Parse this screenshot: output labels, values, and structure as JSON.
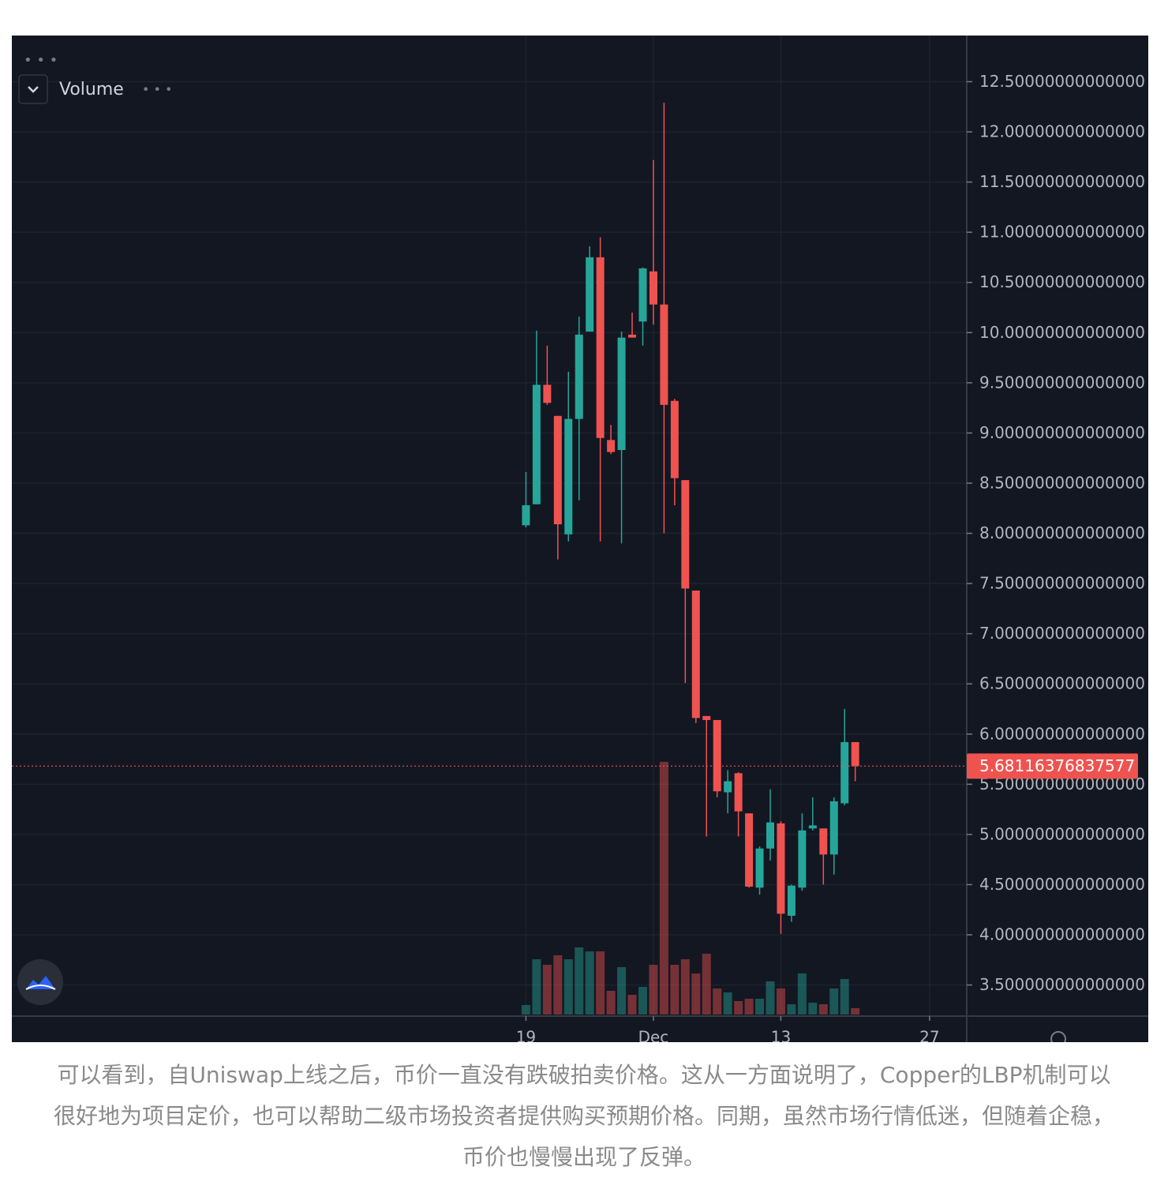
{
  "chart_data": {
    "type": "candlestick",
    "legend_label": "Volume",
    "x": [
      0,
      1,
      2,
      3,
      4,
      5,
      6,
      7,
      8,
      9,
      10,
      11,
      12,
      13,
      14,
      15,
      16,
      17,
      18,
      19,
      20,
      21,
      22,
      23,
      24,
      25,
      26,
      27,
      28,
      29,
      30,
      31
    ],
    "xlim": [
      -48.4,
      41.5
    ],
    "xticks": [
      {
        "value": 0,
        "label": "19"
      },
      {
        "value": 12,
        "label": "Dec"
      },
      {
        "value": 24,
        "label": "13"
      },
      {
        "value": 38,
        "label": "27"
      }
    ],
    "ylim": [
      3.19,
      12.96
    ],
    "yticks": [
      {
        "value": 12.5,
        "label": "12.50000000000000"
      },
      {
        "value": 12,
        "label": "12.00000000000000"
      },
      {
        "value": 11.5,
        "label": "11.50000000000000"
      },
      {
        "value": 11,
        "label": "11.00000000000000"
      },
      {
        "value": 10.5,
        "label": "10.50000000000000"
      },
      {
        "value": 10,
        "label": "10.00000000000000"
      },
      {
        "value": 9.5,
        "label": "9.500000000000000"
      },
      {
        "value": 9,
        "label": "9.000000000000000"
      },
      {
        "value": 8.5,
        "label": "8.500000000000000"
      },
      {
        "value": 8,
        "label": "8.000000000000000"
      },
      {
        "value": 7.5,
        "label": "7.500000000000000"
      },
      {
        "value": 7,
        "label": "7.000000000000000"
      },
      {
        "value": 6.5,
        "label": "6.500000000000000"
      },
      {
        "value": 6,
        "label": "6.000000000000000"
      },
      {
        "value": 5.5,
        "label": "5.500000000000000"
      },
      {
        "value": 5,
        "label": "5.000000000000000"
      },
      {
        "value": 4.5,
        "label": "4.500000000000000"
      },
      {
        "value": 4,
        "label": "4.000000000000000"
      },
      {
        "value": 3.5,
        "label": "3.500000000000000"
      }
    ],
    "open": [
      8.08,
      8.29,
      9.48,
      9.17,
      7.99,
      9.14,
      10.01,
      10.75,
      8.93,
      8.83,
      9.98,
      10.11,
      10.61,
      10.28,
      9.32,
      8.53,
      7.43,
      6.18,
      6.14,
      5.42,
      5.61,
      5.21,
      4.47,
      4.86,
      5.11,
      4.19,
      4.47,
      5.06,
      5.06,
      4.8,
      5.31,
      5.92
    ],
    "high": [
      8.61,
      10.02,
      9.87,
      9.17,
      9.61,
      10.16,
      10.86,
      10.95,
      9.08,
      10.01,
      10.2,
      10.65,
      11.72,
      12.29,
      9.34,
      8.53,
      7.43,
      6.18,
      6.14,
      5.64,
      5.62,
      5.21,
      4.88,
      5.45,
      5.13,
      4.5,
      5.21,
      5.37,
      5.06,
      5.37,
      6.25,
      5.92
    ],
    "low": [
      8.06,
      8.29,
      9.28,
      7.74,
      7.92,
      8.33,
      10.01,
      7.92,
      8.79,
      7.9,
      9.95,
      9.87,
      10.08,
      8.0,
      8.28,
      6.51,
      6.11,
      4.98,
      5.37,
      5.21,
      4.98,
      4.47,
      4.4,
      4.74,
      4.01,
      4.13,
      4.44,
      5.04,
      4.5,
      4.6,
      5.29,
      5.53
    ],
    "close": [
      8.28,
      9.48,
      9.3,
      8.09,
      9.14,
      9.98,
      10.75,
      8.95,
      8.81,
      9.95,
      9.95,
      10.64,
      10.28,
      9.28,
      8.55,
      7.45,
      6.16,
      6.14,
      5.43,
      5.53,
      5.23,
      4.48,
      4.86,
      5.12,
      4.21,
      4.49,
      5.04,
      5.09,
      4.8,
      5.33,
      5.92,
      5.68116376837577
    ],
    "volume": [
      12,
      70,
      63,
      75,
      70,
      85,
      80,
      80,
      30,
      60,
      25,
      35,
      63,
      320,
      63,
      70,
      52,
      77,
      33,
      28,
      17,
      20,
      20,
      42,
      33,
      13,
      52,
      15,
      13,
      33,
      45,
      8
    ],
    "up_color": "#26a69a",
    "down_color": "#ef5350",
    "grid": true
  },
  "caption": "可以看到，自Uniswap上线之后，币价一直没有跌破拍卖价格。这从一方面说明了，Copper的LBP机制可以很好地为项目定价，也可以帮助二级市场投资者提供购买预期价格。同期，虽然市场行情低迷，但随着企稳，币价也慢慢出现了反弹。"
}
